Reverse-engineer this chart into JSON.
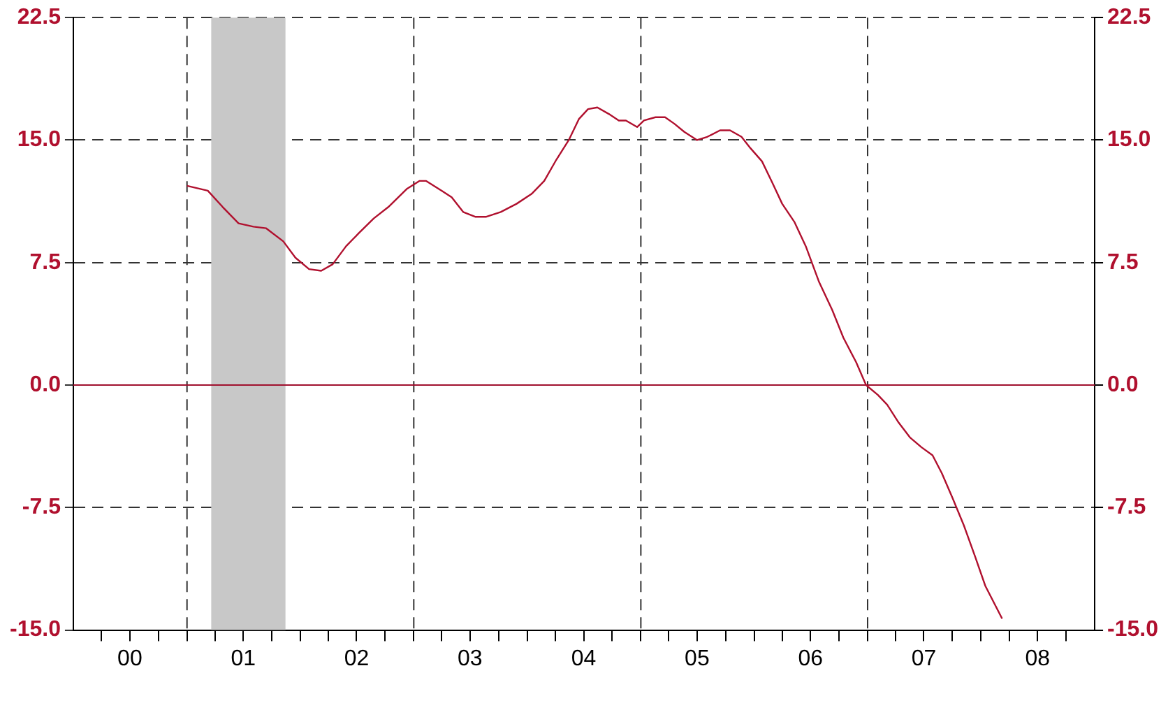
{
  "chart_data": {
    "type": "line",
    "marker": "none",
    "grid": "y",
    "x": [
      "2001-01-01",
      "2001-03-09",
      "2001-04-26",
      "2001-06-16",
      "2001-08-03",
      "2001-09-13",
      "2001-11-07",
      "2001-12-16",
      "2002-01-29",
      "2002-03-09",
      "2002-04-15",
      "2002-05-28",
      "2002-07-08",
      "2002-08-25",
      "2002-10-11",
      "2002-12-09",
      "2003-01-19",
      "2003-02-10",
      "2003-04-01",
      "2003-05-03",
      "2003-06-09",
      "2003-07-19",
      "2003-08-21",
      "2003-10-08",
      "2003-11-28",
      "2004-01-15",
      "2004-02-25",
      "2004-04-04",
      "2004-05-14",
      "2004-06-16",
      "2004-07-15",
      "2004-08-14",
      "2004-09-20",
      "2004-10-22",
      "2004-11-14",
      "2004-12-20",
      "2005-01-11",
      "2005-02-17",
      "2005-03-20",
      "2005-04-19",
      "2005-05-21",
      "2005-07-01",
      "2005-08-03",
      "2005-09-13",
      "2005-10-15",
      "2005-11-21",
      "2005-12-20",
      "2006-01-26",
      "2006-02-28",
      "2006-04-01",
      "2006-05-10",
      "2006-06-16",
      "2006-07-29",
      "2006-09-09",
      "2006-10-15",
      "2006-11-25",
      "2006-12-27",
      "2007-02-03",
      "2007-03-05",
      "2007-04-11",
      "2007-05-17",
      "2007-06-23",
      "2007-07-29",
      "2007-08-28",
      "2007-10-01",
      "2007-11-07",
      "2007-12-13",
      "2008-01-15",
      "2008-03-09"
    ],
    "series": [
      {
        "color": "#b0102e",
        "values": [
          12.2,
          11.9,
          10.9,
          9.9,
          9.7,
          9.6,
          8.8,
          7.8,
          7.1,
          7.0,
          7.4,
          8.5,
          9.3,
          10.2,
          10.9,
          12.0,
          12.5,
          12.5,
          11.9,
          11.5,
          10.6,
          10.3,
          10.3,
          10.6,
          11.1,
          11.7,
          12.5,
          13.8,
          15.0,
          16.3,
          16.9,
          17.0,
          16.6,
          16.2,
          16.2,
          15.8,
          16.2,
          16.4,
          16.4,
          16.0,
          15.5,
          15.0,
          15.2,
          15.6,
          15.6,
          15.2,
          14.5,
          13.7,
          12.4,
          11.1,
          10.0,
          8.5,
          6.3,
          4.6,
          2.9,
          1.4,
          0.0,
          -0.6,
          -1.2,
          -2.3,
          -3.2,
          -3.8,
          -4.3,
          -5.4,
          -6.9,
          -8.6,
          -10.5,
          -12.3,
          -14.3
        ]
      }
    ],
    "xlim": [
      "2000-01-01",
      "2009-01-01"
    ],
    "xticks": [
      {
        "value": "2000-07-01",
        "label": "00"
      },
      {
        "value": "2001-07-01",
        "label": "01"
      },
      {
        "value": "2002-07-01",
        "label": "02"
      },
      {
        "value": "2003-07-01",
        "label": "03"
      },
      {
        "value": "2004-07-01",
        "label": "04"
      },
      {
        "value": "2005-07-01",
        "label": "05"
      },
      {
        "value": "2006-07-01",
        "label": "06"
      },
      {
        "value": "2007-07-01",
        "label": "07"
      },
      {
        "value": "2008-07-01",
        "label": "08"
      },
      {
        "value": "2000-04-01",
        "label": null
      },
      {
        "value": "2000-10-01",
        "label": null
      },
      {
        "value": "2001-04-01",
        "label": null
      },
      {
        "value": "2001-10-01",
        "label": null
      },
      {
        "value": "2002-04-01",
        "label": null
      },
      {
        "value": "2002-10-01",
        "label": null
      },
      {
        "value": "2003-04-01",
        "label": null
      },
      {
        "value": "2003-10-01",
        "label": null
      },
      {
        "value": "2004-04-01",
        "label": null
      },
      {
        "value": "2004-10-01",
        "label": null
      },
      {
        "value": "2005-04-01",
        "label": null
      },
      {
        "value": "2005-10-01",
        "label": null
      },
      {
        "value": "2006-04-01",
        "label": null
      },
      {
        "value": "2006-10-01",
        "label": null
      },
      {
        "value": "2007-04-01",
        "label": null
      },
      {
        "value": "2007-10-01",
        "label": null
      },
      {
        "value": "2008-04-01",
        "label": null
      },
      {
        "value": "2008-10-01",
        "label": null
      },
      {
        "value": "2001-01-01",
        "label": null
      },
      {
        "value": "2002-01-01",
        "label": null
      },
      {
        "value": "2003-01-01",
        "label": null
      },
      {
        "value": "2004-01-01",
        "label": null
      },
      {
        "value": "2005-01-01",
        "label": null
      },
      {
        "value": "2006-01-01",
        "label": null
      },
      {
        "value": "2007-01-01",
        "label": null
      },
      {
        "value": "2008-01-01",
        "label": null
      }
    ],
    "ylim": [
      -15,
      22.5
    ],
    "yticks": [
      {
        "value": -15,
        "label": "-15.0"
      },
      {
        "value": -7.5,
        "label": "-7.5"
      },
      {
        "value": 0,
        "label": "0.0"
      },
      {
        "value": 7.5,
        "label": "7.5"
      },
      {
        "value": 15,
        "label": "15.0"
      },
      {
        "value": 22.5,
        "label": "22.5"
      }
    ],
    "y2lim": [
      -15,
      22.5
    ],
    "y2ticks": [
      {
        "value": -15,
        "label": "-15.0"
      },
      {
        "value": -7.5,
        "label": "-7.5"
      },
      {
        "value": 0,
        "label": "0.0"
      },
      {
        "value": 7.5,
        "label": "7.5"
      },
      {
        "value": 15,
        "label": "15.0"
      },
      {
        "value": 22.5,
        "label": "22.5"
      }
    ],
    "ref_lines": [
      {
        "axis": "x",
        "value": "2001-01-01",
        "color": "#333333",
        "line_style": "dashed"
      },
      {
        "axis": "x",
        "value": "2003-01-01",
        "color": "#333333",
        "line_style": "dashed"
      },
      {
        "axis": "x",
        "value": "2005-01-01",
        "color": "#333333",
        "line_style": "dashed"
      },
      {
        "axis": "x",
        "value": "2007-01-01",
        "color": "#333333",
        "line_style": "dashed"
      },
      {
        "axis": "y",
        "value": 0,
        "color": "#a0102e",
        "line_style": "solid"
      }
    ],
    "bands": [
      {
        "axis": "x",
        "from": "2001-03-20",
        "to": "2001-11-14",
        "color": "#c8c8c8"
      }
    ]
  }
}
